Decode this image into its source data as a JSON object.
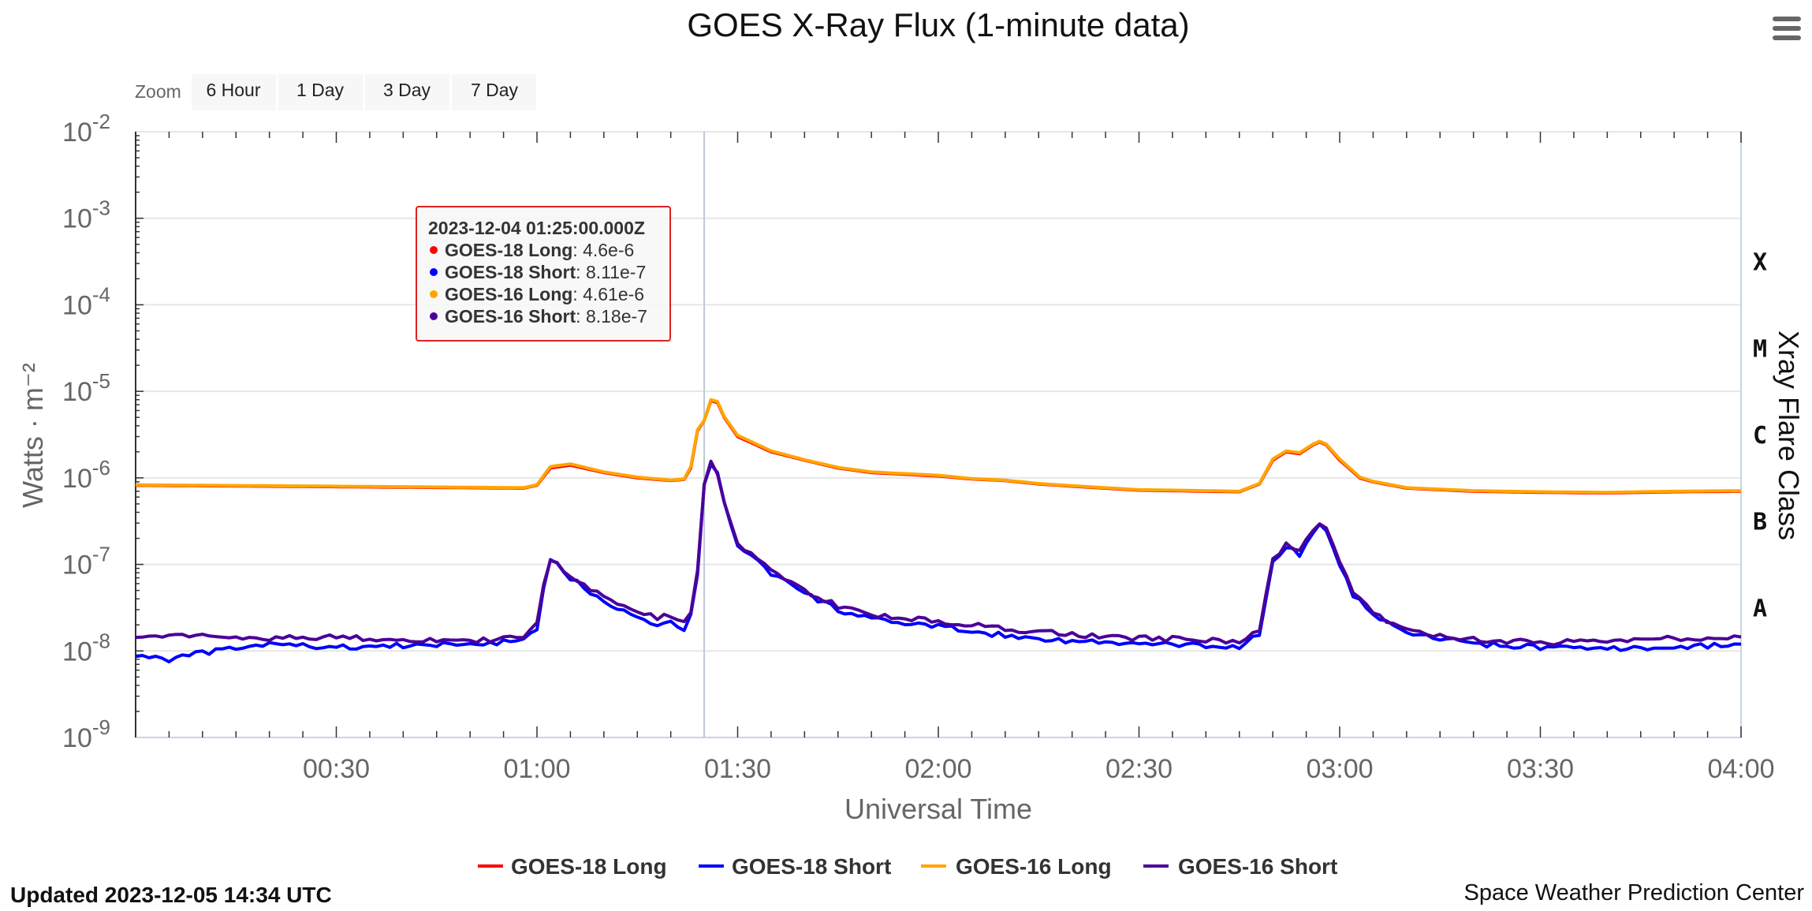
{
  "title": "GOES X-Ray Flux (1-minute data)",
  "menu_icon": "hamburger-menu-icon",
  "zoom": {
    "label": "Zoom",
    "buttons": [
      "6 Hour",
      "1 Day",
      "3 Day",
      "7 Day"
    ]
  },
  "footer": {
    "updated": "Updated 2023-12-05 14:34 UTC",
    "credit": "Space Weather Prediction Center"
  },
  "tooltip": {
    "header": "2023-12-04 01:25:00.000Z",
    "rows": [
      {
        "name": "GOES-18 Long",
        "value": "4.6e-6",
        "color": "#ff0000"
      },
      {
        "name": "GOES-18 Short",
        "value": "8.11e-7",
        "color": "#0000ff"
      },
      {
        "name": "GOES-16 Long",
        "value": "4.61e-6",
        "color": "#ffa500"
      },
      {
        "name": "GOES-16 Short",
        "value": "8.18e-7",
        "color": "#4b0099"
      }
    ]
  },
  "chart_data": {
    "type": "line",
    "title": "GOES X-Ray Flux (1-minute data)",
    "xlabel": "Universal Time",
    "ylabel": "Watts · m⁻²",
    "y2label": "Xray Flare Class",
    "y_scale": "log",
    "ylim": [
      1e-09,
      0.01
    ],
    "xlim": [
      "00:02",
      "04:00"
    ],
    "x_ticks": [
      "00:30",
      "01:00",
      "01:30",
      "02:00",
      "02:30",
      "03:00",
      "03:30",
      "04:00"
    ],
    "y_ticks": [
      {
        "base": "10",
        "exp": "-2"
      },
      {
        "base": "10",
        "exp": "-3"
      },
      {
        "base": "10",
        "exp": "-4"
      },
      {
        "base": "10",
        "exp": "-5"
      },
      {
        "base": "10",
        "exp": "-6"
      },
      {
        "base": "10",
        "exp": "-7"
      },
      {
        "base": "10",
        "exp": "-8"
      },
      {
        "base": "10",
        "exp": "-9"
      }
    ],
    "flare_classes": [
      "X",
      "M",
      "C",
      "B",
      "A"
    ],
    "grid": true,
    "legend_position": "bottom-center",
    "crosshair_x": "01:25",
    "series": [
      {
        "name": "GOES-18 Long",
        "color": "#ff0000",
        "x": [
          "00:00",
          "00:30",
          "00:58",
          "01:00",
          "01:02",
          "01:05",
          "01:10",
          "01:15",
          "01:20",
          "01:22",
          "01:23",
          "01:24",
          "01:25",
          "01:26",
          "01:27",
          "01:28",
          "01:30",
          "01:35",
          "01:40",
          "01:45",
          "01:50",
          "02:00",
          "02:05",
          "02:10",
          "02:15",
          "02:20",
          "02:30",
          "02:40",
          "02:45",
          "02:48",
          "02:50",
          "02:52",
          "02:54",
          "02:56",
          "02:57",
          "02:58",
          "03:00",
          "03:03",
          "03:05",
          "03:10",
          "03:20",
          "03:30",
          "03:40",
          "03:50",
          "04:00"
        ],
        "y": [
          8.2e-07,
          7.9e-07,
          7.6e-07,
          8.2e-07,
          1.3e-06,
          1.4e-06,
          1.15e-06,
          1e-06,
          9.3e-07,
          9.6e-07,
          1.3e-06,
          3.5e-06,
          4.6e-06,
          7.8e-06,
          7.4e-06,
          5e-06,
          3e-06,
          2e-06,
          1.6e-06,
          1.3e-06,
          1.15e-06,
          1.05e-06,
          9.7e-07,
          9.3e-07,
          8.5e-07,
          8e-07,
          7.2e-07,
          7e-07,
          6.9e-07,
          8.5e-07,
          1.6e-06,
          2e-06,
          1.9e-06,
          2.4e-06,
          2.6e-06,
          2.4e-06,
          1.6e-06,
          1e-06,
          9e-07,
          7.6e-07,
          7e-07,
          6.8e-07,
          6.7e-07,
          6.9e-07,
          7e-07
        ]
      },
      {
        "name": "GOES-18 Short",
        "color": "#0000ff",
        "x": [
          "00:00",
          "00:05",
          "00:10",
          "00:20",
          "00:30",
          "00:40",
          "00:50",
          "00:58",
          "01:00",
          "01:01",
          "01:02",
          "01:03",
          "01:05",
          "01:10",
          "01:15",
          "01:18",
          "01:20",
          "01:22",
          "01:23",
          "01:24",
          "01:25",
          "01:26",
          "01:27",
          "01:28",
          "01:30",
          "01:35",
          "01:40",
          "01:45",
          "01:50",
          "02:00",
          "02:05",
          "02:10",
          "02:20",
          "02:30",
          "02:40",
          "02:45",
          "02:48",
          "02:50",
          "02:52",
          "02:54",
          "02:56",
          "02:57",
          "02:58",
          "03:00",
          "03:02",
          "03:05",
          "03:10",
          "03:20",
          "03:30",
          "03:40",
          "03:50",
          "04:00"
        ],
        "y": [
          9e-09,
          8e-09,
          9.5e-09,
          1.2e-08,
          1.1e-08,
          1.15e-08,
          1.2e-08,
          1.3e-08,
          1.8e-08,
          5e-08,
          1.1e-07,
          1e-07,
          7e-08,
          3.8e-08,
          2.5e-08,
          2e-08,
          2.2e-08,
          1.8e-08,
          2.5e-08,
          8e-08,
          8.11e-07,
          1.5e-06,
          1.1e-06,
          5e-07,
          1.7e-07,
          8e-08,
          4.6e-08,
          3e-08,
          2.3e-08,
          1.9e-08,
          1.7e-08,
          1.5e-08,
          1.3e-08,
          1.2e-08,
          1.15e-08,
          1.1e-08,
          1.6e-08,
          1.05e-07,
          1.6e-07,
          1.3e-07,
          2.3e-07,
          2.8e-07,
          2.5e-07,
          1e-07,
          4.5e-08,
          2.5e-08,
          1.6e-08,
          1.2e-08,
          1.1e-08,
          1.05e-08,
          1.1e-08,
          1.2e-08
        ]
      },
      {
        "name": "GOES-16 Long",
        "color": "#ffa500",
        "x": [
          "00:00",
          "00:30",
          "00:58",
          "01:00",
          "01:02",
          "01:05",
          "01:10",
          "01:15",
          "01:20",
          "01:22",
          "01:23",
          "01:24",
          "01:25",
          "01:26",
          "01:27",
          "01:28",
          "01:30",
          "01:35",
          "01:40",
          "01:45",
          "01:50",
          "02:00",
          "02:05",
          "02:10",
          "02:15",
          "02:20",
          "02:30",
          "02:40",
          "02:45",
          "02:48",
          "02:50",
          "02:52",
          "02:54",
          "02:56",
          "02:57",
          "02:58",
          "03:00",
          "03:03",
          "03:05",
          "03:10",
          "03:20",
          "03:30",
          "03:40",
          "03:50",
          "04:00"
        ],
        "y": [
          8.3e-07,
          8e-07,
          7.7e-07,
          8.3e-07,
          1.35e-06,
          1.45e-06,
          1.17e-06,
          1.02e-06,
          9.4e-07,
          9.7e-07,
          1.35e-06,
          3.6e-06,
          4.61e-06,
          8e-06,
          7.6e-06,
          5.1e-06,
          3.1e-06,
          2.05e-06,
          1.62e-06,
          1.32e-06,
          1.17e-06,
          1.07e-06,
          9.8e-07,
          9.4e-07,
          8.6e-07,
          8.1e-07,
          7.3e-07,
          7.1e-07,
          7e-07,
          8.6e-07,
          1.65e-06,
          2.05e-06,
          1.95e-06,
          2.45e-06,
          2.65e-06,
          2.45e-06,
          1.65e-06,
          1.02e-06,
          9.1e-07,
          7.7e-07,
          7.1e-07,
          6.9e-07,
          6.8e-07,
          7e-07,
          7.1e-07
        ]
      },
      {
        "name": "GOES-16 Short",
        "color": "#4b0099",
        "x": [
          "00:00",
          "00:05",
          "00:10",
          "00:20",
          "00:30",
          "00:40",
          "00:50",
          "00:58",
          "01:00",
          "01:01",
          "01:02",
          "01:03",
          "01:05",
          "01:10",
          "01:15",
          "01:18",
          "01:20",
          "01:22",
          "01:23",
          "01:24",
          "01:25",
          "01:26",
          "01:27",
          "01:28",
          "01:30",
          "01:35",
          "01:40",
          "01:45",
          "01:50",
          "02:00",
          "02:05",
          "02:10",
          "02:20",
          "02:30",
          "02:40",
          "02:45",
          "02:48",
          "02:50",
          "02:52",
          "02:54",
          "02:56",
          "02:57",
          "02:58",
          "03:00",
          "03:02",
          "03:05",
          "03:10",
          "03:20",
          "03:30",
          "03:40",
          "03:50",
          "04:00"
        ],
        "y": [
          1.5e-08,
          1.45e-08,
          1.5e-08,
          1.4e-08,
          1.45e-08,
          1.35e-08,
          1.3e-08,
          1.45e-08,
          2e-08,
          5.5e-08,
          1.15e-07,
          1.05e-07,
          7.5e-08,
          4.2e-08,
          2.8e-08,
          2.4e-08,
          2.6e-08,
          2.1e-08,
          2.8e-08,
          9e-08,
          8.18e-07,
          1.6e-06,
          1.15e-06,
          5.2e-07,
          1.8e-07,
          8.5e-08,
          5e-08,
          3.3e-08,
          2.6e-08,
          2.2e-08,
          2e-08,
          1.8e-08,
          1.55e-08,
          1.4e-08,
          1.35e-08,
          1.3e-08,
          1.8e-08,
          1.1e-07,
          1.7e-07,
          1.4e-07,
          2.4e-07,
          2.9e-07,
          2.6e-07,
          1.1e-07,
          5e-08,
          2.7e-08,
          1.7e-08,
          1.35e-08,
          1.25e-08,
          1.3e-08,
          1.4e-08,
          1.45e-08
        ]
      }
    ]
  }
}
